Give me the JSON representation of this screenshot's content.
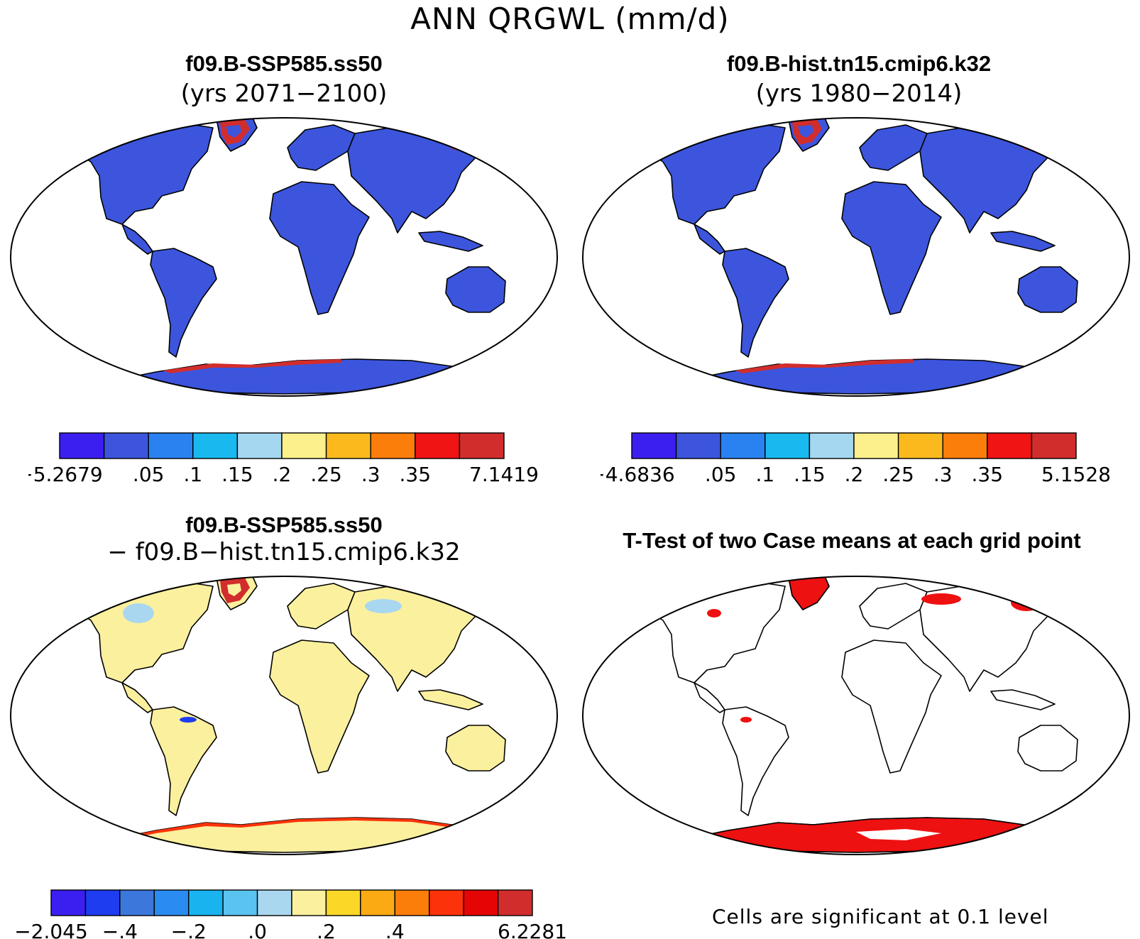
{
  "figure": {
    "title": "ANN QRGWL (mm/d)"
  },
  "panels": [
    {
      "id": "case1",
      "title": "f09.B-SSP585.ss50",
      "subtitle": "(yrs 2071−2100)",
      "land_color": "#3c55dc",
      "colorbar": {
        "colors": [
          "#3b1ff0",
          "#3c55dc",
          "#2a82f0",
          "#19b9f0",
          "#a5d7f0",
          "#fbf08c",
          "#fbb91e",
          "#fb7d0a",
          "#f01414",
          "#d22d2d"
        ],
        "labels": [
          "−5.2679",
          ".05",
          ".1",
          ".15",
          ".2",
          ".25",
          ".3",
          ".35",
          "7.1419"
        ]
      }
    },
    {
      "id": "case2",
      "title": "f09.B-hist.tn15.cmip6.k32",
      "subtitle": "(yrs 1980−2014)",
      "land_color": "#3c55dc",
      "colorbar": {
        "colors": [
          "#3b1ff0",
          "#3c55dc",
          "#2a82f0",
          "#19b9f0",
          "#a5d7f0",
          "#fbf08c",
          "#fbb91e",
          "#fb7d0a",
          "#f01414",
          "#d22d2d"
        ],
        "labels": [
          "−4.6836",
          ".05",
          ".1",
          ".15",
          ".2",
          ".25",
          ".3",
          ".35",
          "5.1528"
        ]
      }
    },
    {
      "id": "diff",
      "title": "f09.B-SSP585.ss50",
      "subtitle": "− f09.B−hist.tn15.cmip6.k32",
      "land_color": "#fbf09e",
      "colorbar": {
        "colors": [
          "#3b1ff0",
          "#1e3cf0",
          "#3c78dc",
          "#2a8cf0",
          "#19b4f0",
          "#5ac3f0",
          "#aad7f0",
          "#fbf09e",
          "#fbd728",
          "#fbaa14",
          "#fb7d0a",
          "#fb320a",
          "#e60505",
          "#d22d2d"
        ],
        "labels": [
          "−2.045",
          "−.4",
          "−.2",
          ".0",
          ".2",
          ".4",
          "6.2281"
        ]
      }
    },
    {
      "id": "ttest",
      "title": "T-Test of two Case means at each grid point",
      "land_color": "#ffffff",
      "sig_color": "#ee1111",
      "note": "Cells are significant at 0.1 level"
    }
  ]
}
